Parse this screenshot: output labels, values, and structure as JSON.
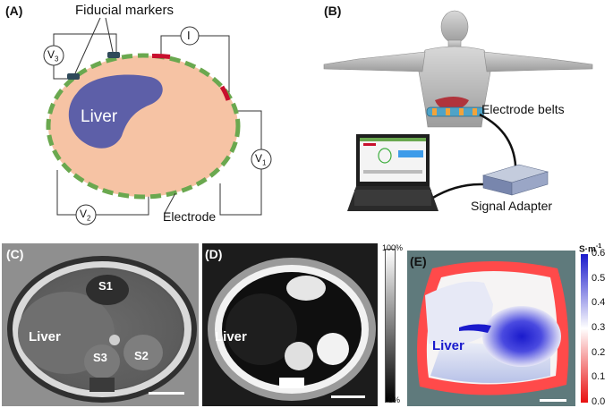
{
  "panels": {
    "a": {
      "label": "(A)",
      "fiducial_label": "Fiducial markers",
      "organ_label": "Liver",
      "electrode_label": "Electrode",
      "current_label": "I",
      "v1_label": "V",
      "v1_sub": "1",
      "v2_label": "V",
      "v2_sub": "2",
      "v3_label": "V",
      "v3_sub": "3",
      "colors": {
        "body": "#f6c3a4",
        "liver": "#5d5fa8",
        "electrode": "#6aa84f",
        "active_electrode": "#c8102e"
      }
    },
    "b": {
      "label": "(B)",
      "belts_label": "Electrode belts",
      "adapter_label": "Signal Adapter"
    },
    "c": {
      "label": "(C)",
      "organ_label": "Liver",
      "s1": "S1",
      "s2": "S2",
      "s3": "S3"
    },
    "d": {
      "label": "(D)",
      "organ_label": "Liver",
      "scale_top": "100%",
      "scale_bottom": "0%"
    },
    "e": {
      "label": "(E)",
      "organ_label": "Liver",
      "unit": "S·m",
      "unit_exp": "-1",
      "ticks": [
        "0.6",
        "0.5",
        "0.4",
        "0.3",
        "0.2",
        "0.1",
        "0.0"
      ],
      "colors": {
        "high": "#1a1acc",
        "mid": "#ffffff",
        "low": "#e81010"
      }
    }
  }
}
